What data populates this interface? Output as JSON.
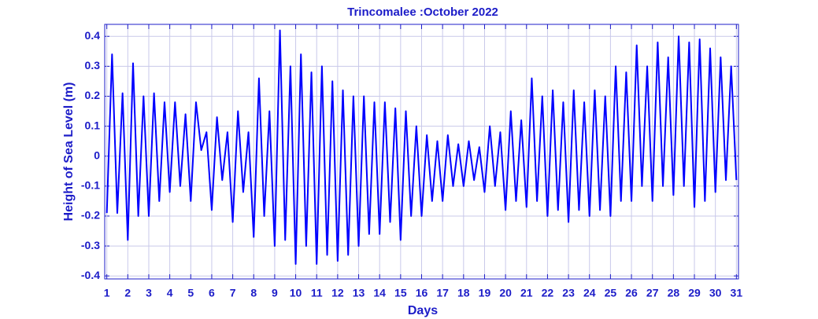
{
  "chart_data": {
    "type": "line",
    "title": "Trincomalee :October  2022",
    "x_label": "Days",
    "y_label": "Height of Sea Level (m)",
    "color": "#0000ff",
    "grid": true,
    "xlim": [
      0.9,
      31.1
    ],
    "ylim": [
      -0.41,
      0.44
    ],
    "xticks": [
      1,
      2,
      3,
      4,
      5,
      6,
      7,
      8,
      9,
      10,
      11,
      12,
      13,
      14,
      15,
      16,
      17,
      18,
      19,
      20,
      21,
      22,
      23,
      24,
      25,
      26,
      27,
      28,
      29,
      30,
      31
    ],
    "yticks": [
      -0.4,
      -0.3,
      -0.2,
      -0.1,
      0,
      0.1,
      0.2,
      0.3,
      0.4
    ],
    "x": [
      1,
      1.25,
      1.5,
      1.75,
      2,
      2.25,
      2.5,
      2.75,
      3,
      3.25,
      3.5,
      3.75,
      4,
      4.25,
      4.5,
      4.75,
      5,
      5.25,
      5.5,
      5.75,
      6,
      6.25,
      6.5,
      6.75,
      7,
      7.25,
      7.5,
      7.75,
      8,
      8.25,
      8.5,
      8.75,
      9,
      9.25,
      9.5,
      9.75,
      10,
      10.25,
      10.5,
      10.75,
      11,
      11.25,
      11.5,
      11.75,
      12,
      12.25,
      12.5,
      12.75,
      13,
      13.25,
      13.5,
      13.75,
      14,
      14.25,
      14.5,
      14.75,
      15,
      15.25,
      15.5,
      15.75,
      16,
      16.25,
      16.5,
      16.75,
      17,
      17.25,
      17.5,
      17.75,
      18,
      18.25,
      18.5,
      18.75,
      19,
      19.25,
      19.5,
      19.75,
      20,
      20.25,
      20.5,
      20.75,
      21,
      21.25,
      21.5,
      21.75,
      22,
      22.25,
      22.5,
      22.75,
      23,
      23.25,
      23.5,
      23.75,
      24,
      24.25,
      24.5,
      24.75,
      25,
      25.25,
      25.5,
      25.75,
      26,
      26.25,
      26.5,
      26.75,
      27,
      27.25,
      27.5,
      27.75,
      28,
      28.25,
      28.5,
      28.75,
      29,
      29.25,
      29.5,
      29.75,
      30,
      30.25,
      30.5,
      30.75,
      31
    ],
    "values": [
      -0.19,
      0.34,
      -0.19,
      0.21,
      -0.28,
      0.31,
      -0.2,
      0.2,
      -0.2,
      0.21,
      -0.15,
      0.18,
      -0.12,
      0.18,
      -0.1,
      0.14,
      -0.15,
      0.18,
      0.02,
      0.08,
      -0.18,
      0.13,
      -0.08,
      0.08,
      -0.22,
      0.15,
      -0.12,
      0.08,
      -0.27,
      0.26,
      -0.2,
      0.15,
      -0.3,
      0.42,
      -0.28,
      0.3,
      -0.36,
      0.34,
      -0.3,
      0.28,
      -0.36,
      0.3,
      -0.33,
      0.25,
      -0.35,
      0.22,
      -0.33,
      0.2,
      -0.3,
      0.2,
      -0.26,
      0.18,
      -0.26,
      0.18,
      -0.22,
      0.16,
      -0.28,
      0.15,
      -0.2,
      0.1,
      -0.2,
      0.07,
      -0.15,
      0.05,
      -0.15,
      0.07,
      -0.1,
      0.04,
      -0.1,
      0.05,
      -0.08,
      0.03,
      -0.12,
      0.1,
      -0.1,
      0.08,
      -0.18,
      0.15,
      -0.15,
      0.12,
      -0.17,
      0.26,
      -0.15,
      0.2,
      -0.2,
      0.22,
      -0.18,
      0.18,
      -0.22,
      0.22,
      -0.18,
      0.18,
      -0.2,
      0.22,
      -0.18,
      0.2,
      -0.2,
      0.3,
      -0.15,
      0.28,
      -0.15,
      0.37,
      -0.1,
      0.3,
      -0.15,
      0.38,
      -0.1,
      0.33,
      -0.13,
      0.4,
      -0.1,
      0.38,
      -0.17,
      0.39,
      -0.15,
      0.36,
      -0.12,
      0.33,
      -0.08,
      0.3,
      -0.08
    ]
  }
}
